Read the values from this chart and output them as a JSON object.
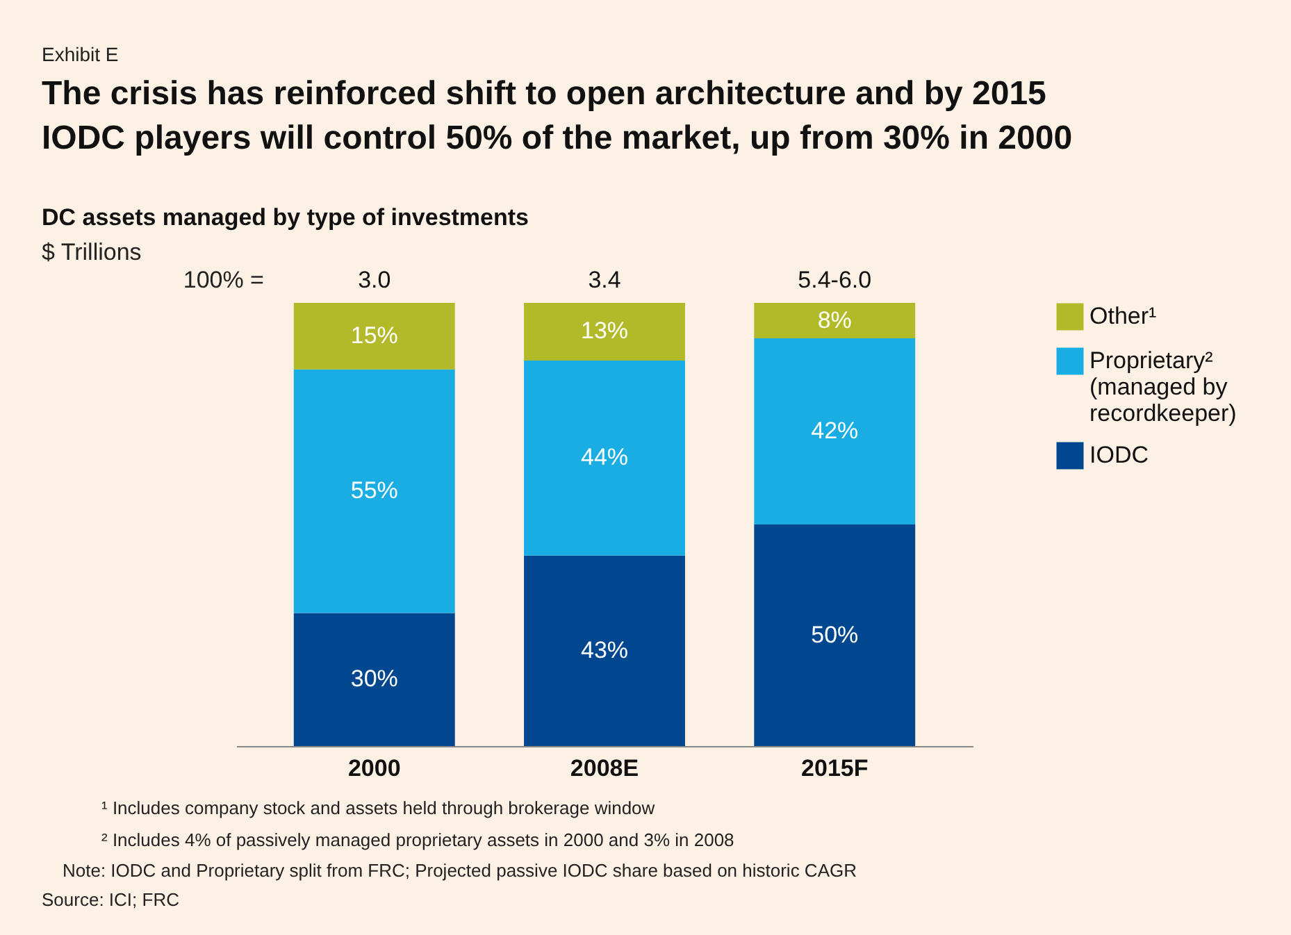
{
  "chart_data": {
    "type": "bar",
    "stacked": true,
    "title": "The crisis has reinforced shift to open architecture and by 2015 IODC players will control 50% of the market, up from 30% in 2000",
    "subtitle": "DC assets managed by type of investments",
    "ylabel": "$ Trillions",
    "categories": [
      "2000",
      "2008E",
      "2015F"
    ],
    "series": [
      {
        "name": "IODC",
        "color": "#00478f",
        "values": [
          30,
          43,
          50
        ],
        "value_labels": [
          "30%",
          "43%",
          "50%"
        ]
      },
      {
        "name": "Proprietary² (managed by recordkeeper)",
        "color": "#1aade3",
        "values": [
          55,
          44,
          42
        ],
        "value_labels": [
          "55%",
          "44%",
          "42%"
        ]
      },
      {
        "name": "Other¹",
        "color": "#b3ba2a",
        "values": [
          15,
          13,
          8
        ],
        "value_labels": [
          "15%",
          "13%",
          "8%"
        ]
      }
    ],
    "legend": "right",
    "annotations": [
      "Exhibit E",
      "100% =",
      "3.0",
      "3.4",
      "5.4-6.0",
      "¹ Includes company stock and assets held through brokerage window",
      "² Includes 4% of passively managed proprietary assets in 2000 and 3% in 2008",
      "Note: IODC and Proprietary split from FRC; Projected passive IODC share based on historic CAGR",
      "Source: ICI; FRC"
    ]
  }
}
